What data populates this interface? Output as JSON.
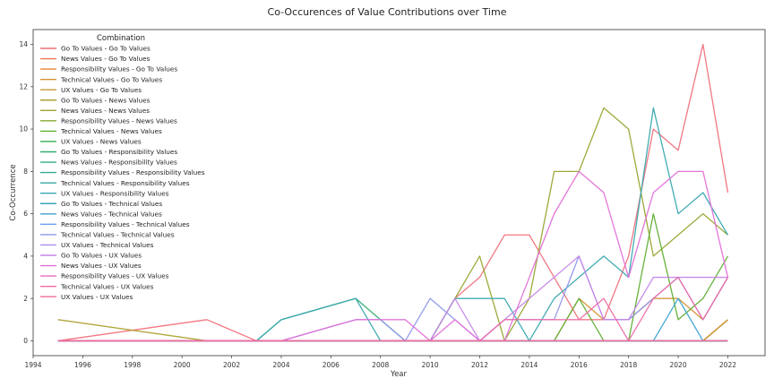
{
  "chart_data": {
    "type": "line",
    "title": "Co-Occurences of Value Contributions over Time",
    "xlabel": "Year",
    "ylabel": "Co-Occurrence",
    "xlim": [
      1994,
      2023.5
    ],
    "ylim": [
      -0.7,
      14.7
    ],
    "xticks": [
      1994,
      1996,
      1998,
      2000,
      2002,
      2004,
      2006,
      2008,
      2010,
      2012,
      2014,
      2016,
      2018,
      2020,
      2022
    ],
    "yticks": [
      0,
      2,
      4,
      6,
      8,
      10,
      12,
      14
    ],
    "grid": false,
    "legend": {
      "title": "Combination",
      "position": "upper-left"
    },
    "x": [
      1995,
      2001,
      2003,
      2004,
      2007,
      2008,
      2009,
      2010,
      2011,
      2012,
      2013,
      2014,
      2015,
      2016,
      2017,
      2018,
      2019,
      2020,
      2021,
      2022
    ],
    "series": [
      {
        "name": "Go To Values - Go To Values",
        "color": "#f0707b",
        "values": [
          0,
          1,
          0,
          0,
          0,
          0,
          0,
          0,
          2,
          3,
          5,
          5,
          3,
          1,
          1,
          4,
          10,
          9,
          14,
          7
        ]
      },
      {
        "name": "News Values - Go To Values",
        "color": "#ef7652",
        "values": [
          0,
          0,
          0,
          0,
          0,
          0,
          0,
          0,
          0,
          0,
          0,
          0,
          0,
          0,
          0,
          0,
          0,
          0,
          0,
          1
        ]
      },
      {
        "name": "Responsibility Values - Go To Values",
        "color": "#e88335",
        "values": [
          0,
          0,
          0,
          0,
          0,
          0,
          0,
          0,
          0,
          0,
          0,
          0,
          0,
          0,
          0,
          0,
          0,
          0,
          0,
          1
        ]
      },
      {
        "name": "Technical Values - Go To Values",
        "color": "#d39232",
        "values": [
          0,
          0,
          0,
          0,
          0,
          0,
          0,
          0,
          0,
          0,
          0,
          0,
          0,
          2,
          1,
          1,
          2,
          2,
          1,
          3
        ]
      },
      {
        "name": "UX Values - Go To Values",
        "color": "#c19a32",
        "values": [
          0,
          0,
          0,
          0,
          0,
          0,
          0,
          0,
          0,
          0,
          0,
          0,
          0,
          0,
          0,
          0,
          0,
          0,
          0,
          1
        ]
      },
      {
        "name": "Go To Values - News Values",
        "color": "#ada132",
        "values": [
          1,
          0,
          0,
          0,
          0,
          0,
          0,
          0,
          0,
          0,
          0,
          0,
          0,
          0,
          0,
          0,
          0,
          0,
          0,
          0
        ]
      },
      {
        "name": "News Values - News Values",
        "color": "#9aa432",
        "values": [
          0,
          0,
          0,
          0,
          0,
          0,
          0,
          0,
          2,
          4,
          0,
          2,
          8,
          8,
          11,
          10,
          4,
          5,
          6,
          5
        ]
      },
      {
        "name": "Responsibility Values - News Values",
        "color": "#85a932",
        "values": [
          0,
          0,
          0,
          0,
          0,
          0,
          0,
          0,
          0,
          0,
          0,
          0,
          0,
          0,
          0,
          0,
          0,
          0,
          0,
          0
        ]
      },
      {
        "name": "Technical Values - News Values",
        "color": "#5fae33",
        "values": [
          0,
          0,
          0,
          0,
          0,
          0,
          0,
          0,
          0,
          0,
          0,
          0,
          0,
          2,
          0,
          0,
          6,
          1,
          2,
          4
        ]
      },
      {
        "name": "UX Values - News Values",
        "color": "#35ae4e",
        "values": [
          0,
          0,
          0,
          0,
          0,
          0,
          0,
          0,
          0,
          0,
          0,
          0,
          0,
          0,
          0,
          0,
          0,
          0,
          0,
          0
        ]
      },
      {
        "name": "Go To Values - Responsibility Values",
        "color": "#34ad73",
        "values": [
          0,
          0,
          0,
          1,
          2,
          1,
          0,
          0,
          0,
          0,
          0,
          0,
          0,
          0,
          0,
          0,
          0,
          0,
          0,
          0
        ]
      },
      {
        "name": "News Values - Responsibility Values",
        "color": "#35ab88",
        "values": [
          0,
          0,
          0,
          0,
          0,
          0,
          0,
          0,
          0,
          0,
          0,
          0,
          0,
          0,
          0,
          0,
          0,
          0,
          0,
          0
        ]
      },
      {
        "name": "Responsibility Values - Responsibility Values",
        "color": "#36aa96",
        "values": [
          0,
          0,
          0,
          0,
          0,
          0,
          0,
          0,
          0,
          0,
          0,
          0,
          0,
          0,
          0,
          0,
          0,
          0,
          0,
          0
        ]
      },
      {
        "name": "Technical Values - Responsibility Values",
        "color": "#37a9a3",
        "values": [
          0,
          0,
          0,
          0,
          0,
          0,
          0,
          0,
          0,
          0,
          0,
          0,
          0,
          0,
          0,
          0,
          0,
          0,
          0,
          0
        ]
      },
      {
        "name": "UX Values - Responsibility Values",
        "color": "#38a8af",
        "values": [
          0,
          0,
          0,
          1,
          2,
          0,
          0,
          0,
          2,
          2,
          2,
          0,
          2,
          3,
          4,
          3,
          11,
          6,
          7,
          5
        ]
      },
      {
        "name": "Go To Values - Technical Values",
        "color": "#3aa6bd",
        "values": [
          0,
          0,
          0,
          0,
          0,
          0,
          0,
          0,
          0,
          0,
          0,
          0,
          0,
          0,
          0,
          0,
          0,
          0,
          0,
          0
        ]
      },
      {
        "name": "News Values - Technical Values",
        "color": "#3ca3cd",
        "values": [
          0,
          0,
          0,
          0,
          0,
          0,
          0,
          0,
          0,
          0,
          0,
          0,
          0,
          0,
          0,
          0,
          0,
          2,
          0,
          0
        ]
      },
      {
        "name": "Responsibility Values - Technical Values",
        "color": "#6c9ff0",
        "values": [
          0,
          0,
          0,
          0,
          0,
          0,
          0,
          0,
          0,
          0,
          0,
          0,
          0,
          0,
          0,
          0,
          0,
          0,
          0,
          0
        ]
      },
      {
        "name": "Technical Values - Technical Values",
        "color": "#8e97e8",
        "values": [
          0,
          0,
          0,
          0,
          1,
          1,
          0,
          2,
          1,
          0,
          1,
          1,
          1,
          4,
          1,
          1,
          2,
          3,
          1,
          3
        ]
      },
      {
        "name": "UX Values - Technical Values",
        "color": "#a88ee9",
        "values": [
          0,
          0,
          0,
          0,
          0,
          0,
          0,
          0,
          0,
          0,
          0,
          0,
          0,
          0,
          0,
          0,
          0,
          0,
          0,
          0
        ]
      },
      {
        "name": "Go To Values - UX Values",
        "color": "#c786e8",
        "values": [
          0,
          0,
          0,
          0,
          0,
          0,
          0,
          0,
          2,
          0,
          1,
          2,
          3,
          4,
          1,
          1,
          3,
          3,
          3,
          3
        ]
      },
      {
        "name": "News Values - UX Values",
        "color": "#e26fd8",
        "values": [
          0,
          0,
          0,
          0,
          1,
          1,
          1,
          0,
          1,
          0,
          0,
          3,
          6,
          8,
          7,
          3,
          7,
          8,
          8,
          3
        ]
      },
      {
        "name": "Responsibility Values - UX Values",
        "color": "#ea6abd",
        "values": [
          0,
          0,
          0,
          0,
          0,
          0,
          0,
          0,
          0,
          0,
          0,
          0,
          0,
          0,
          0,
          0,
          0,
          0,
          0,
          0
        ]
      },
      {
        "name": "Technical Values - UX Values",
        "color": "#ec6aa9",
        "values": [
          0,
          0,
          0,
          0,
          0,
          0,
          0,
          0,
          0,
          0,
          1,
          1,
          1,
          1,
          2,
          0,
          2,
          3,
          1,
          3
        ]
      },
      {
        "name": "UX Values - UX Values",
        "color": "#ee6d93",
        "values": [
          0,
          0,
          0,
          0,
          0,
          0,
          0,
          0,
          0,
          0,
          0,
          0,
          0,
          0,
          0,
          0,
          0,
          0,
          0,
          0
        ]
      }
    ]
  }
}
